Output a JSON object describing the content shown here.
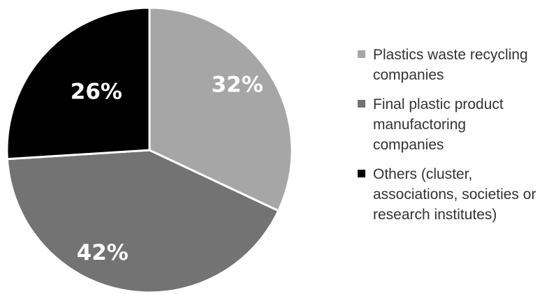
{
  "chart_data": {
    "type": "pie",
    "title": "",
    "categories": [
      "Plastics waste recycling companies",
      "Final plastic product manufactoring companies",
      "Others (cluster, associations, societies or research institutes)"
    ],
    "values": [
      32,
      42,
      26
    ],
    "labels": [
      "32%",
      "42%",
      "26%"
    ],
    "colors": [
      "#a6a6a6",
      "#737373",
      "#000000"
    ],
    "legend_position": "right",
    "start_angle": "top, clockwise"
  },
  "legend": {
    "items": [
      {
        "lines": [
          "Plastics waste recycling",
          "companies"
        ],
        "color": "#a6a6a6"
      },
      {
        "lines": [
          "Final plastic product",
          "manufactoring",
          "companies"
        ],
        "color": "#737373"
      },
      {
        "lines": [
          "Others (cluster,",
          "associations, societies or",
          "research institutes)"
        ],
        "color": "#000000"
      }
    ]
  }
}
